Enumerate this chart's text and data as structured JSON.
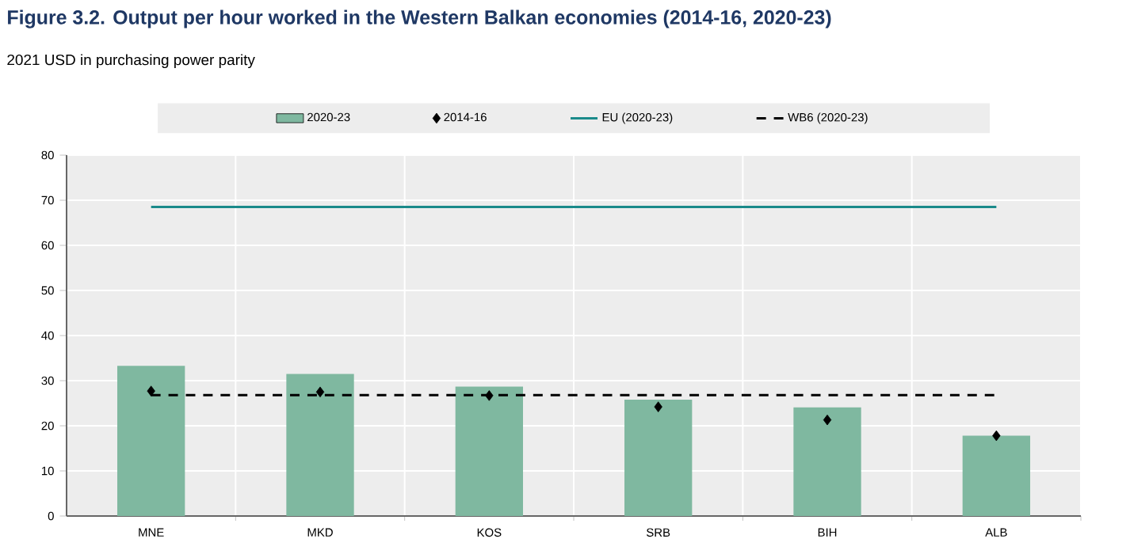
{
  "chart_data": {
    "type": "bar",
    "title": "Figure 3.2. Output per hour worked in the Western Balkan economies (2014-16, 2020-23)",
    "subtitle": "2021 USD in purchasing power parity",
    "categories": [
      "MNE",
      "MKD",
      "KOS",
      "SRB",
      "BIH",
      "ALB"
    ],
    "series": [
      {
        "name": "2020-23",
        "color": "#7fb8a0",
        "values": [
          33.3,
          31.5,
          28.7,
          25.8,
          24.1,
          17.8
        ]
      },
      {
        "name": "2014-16",
        "type": "scatter",
        "marker": "diamond",
        "color": "#000000",
        "values": [
          27.7,
          27.5,
          26.7,
          24.2,
          21.3,
          17.8
        ]
      },
      {
        "name": "EU (2020-23)",
        "type": "line",
        "color": "#1a8a8a",
        "line_style": "solid",
        "values": [
          68.5,
          68.5,
          68.5,
          68.5,
          68.5,
          68.5
        ]
      },
      {
        "name": "WB6 (2020-23)",
        "type": "line",
        "color": "#000000",
        "line_style": "dashed",
        "values": [
          26.8,
          26.8,
          26.8,
          26.8,
          26.8,
          26.8
        ]
      }
    ],
    "ylim": [
      0,
      80
    ],
    "yticks": [
      0,
      10,
      20,
      30,
      40,
      50,
      60,
      70,
      80
    ],
    "grid": true,
    "legend": "top"
  }
}
